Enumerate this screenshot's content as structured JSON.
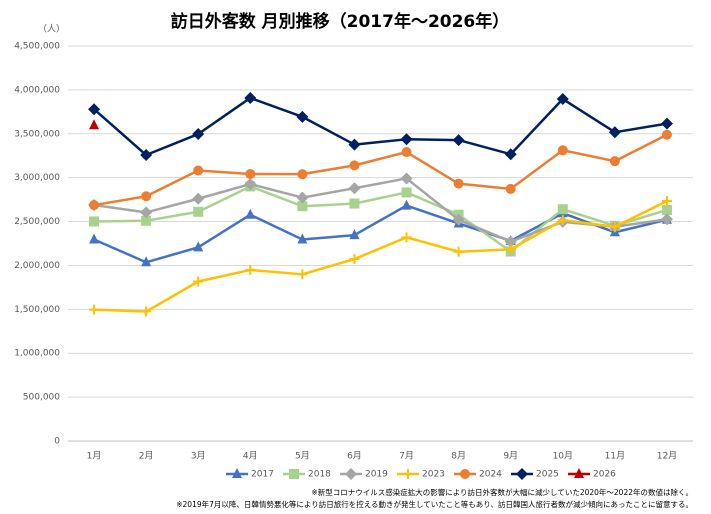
{
  "chart_data": {
    "type": "line",
    "title": "訪日外客数 月別推移（2017年～2026年）",
    "y_unit": "（人）",
    "categories": [
      "1月",
      "2月",
      "3月",
      "4月",
      "5月",
      "6月",
      "7月",
      "8月",
      "9月",
      "10月",
      "11月",
      "12月"
    ],
    "series": [
      {
        "name": "2017",
        "color": "#4472c4",
        "marker": "triangle",
        "values": [
          2296000,
          2036000,
          2206000,
          2578000,
          2295000,
          2346000,
          2682000,
          2478000,
          2280000,
          2595000,
          2378000,
          2521000
        ]
      },
      {
        "name": "2018",
        "color": "#a9d18e",
        "marker": "square",
        "values": [
          2501000,
          2509000,
          2611000,
          2900000,
          2675000,
          2705000,
          2832000,
          2578000,
          2159000,
          2641000,
          2452000,
          2632000
        ]
      },
      {
        "name": "2019",
        "color": "#a5a5a5",
        "marker": "diamond",
        "values": [
          2689000,
          2604000,
          2760000,
          2927000,
          2773000,
          2880000,
          2991000,
          2520000,
          2272000,
          2497000,
          2441000,
          2526000
        ]
      },
      {
        "name": "2023",
        "color": "#ffc000",
        "marker": "plus",
        "values": [
          1497000,
          1475000,
          1817000,
          1949000,
          1899000,
          2073000,
          2320000,
          2156000,
          2184000,
          2517000,
          2441000,
          2734000
        ]
      },
      {
        "name": "2024",
        "color": "#ed7d31",
        "marker": "circle",
        "values": [
          2688000,
          2788000,
          3082000,
          3042000,
          3040000,
          3140000,
          3292000,
          2932000,
          2872000,
          3312000,
          3188000,
          3489000
        ]
      },
      {
        "name": "2025",
        "color": "#002060",
        "marker": "diamond",
        "values": [
          3780000,
          3258000,
          3497000,
          3908000,
          3693000,
          3377000,
          3437000,
          3428000,
          3267000,
          3896000,
          3518000,
          3616000
        ]
      },
      {
        "name": "2026",
        "color": "#c00000",
        "marker": "triangle",
        "values": [
          3597000,
          null,
          null,
          null,
          null,
          null,
          null,
          null,
          null,
          null,
          null,
          null
        ]
      }
    ],
    "ylim": [
      0,
      4500000
    ],
    "yticks": [
      0,
      {
        "value": 500000,
        "label": "500,000"
      },
      {
        "value": 1000000,
        "label": "1,000,000"
      },
      {
        "value": 1500000,
        "label": "1,500,000"
      },
      {
        "value": 2000000,
        "label": "2,000,000"
      },
      {
        "value": 2500000,
        "label": "2,500,000"
      },
      {
        "value": 3000000,
        "label": "3,000,000"
      },
      {
        "value": 3500000,
        "label": "3,500,000"
      },
      {
        "value": 4000000,
        "label": "4,000,000"
      },
      {
        "value": 4500000,
        "label": "4,500,000"
      }
    ],
    "grid": true,
    "legend": "bottom",
    "notes": [
      "※新型コロナウイルス感染症拡大の影響により訪日外客数が大幅に減少していた2020年～2022年の数値は除く。",
      "※2019年7月以降、日韓情勢悪化等により訪日旅行を控える動きが発生していたこと等もあり、訪日韓国人旅行者数が減少傾向にあったことに留意する。"
    ]
  }
}
